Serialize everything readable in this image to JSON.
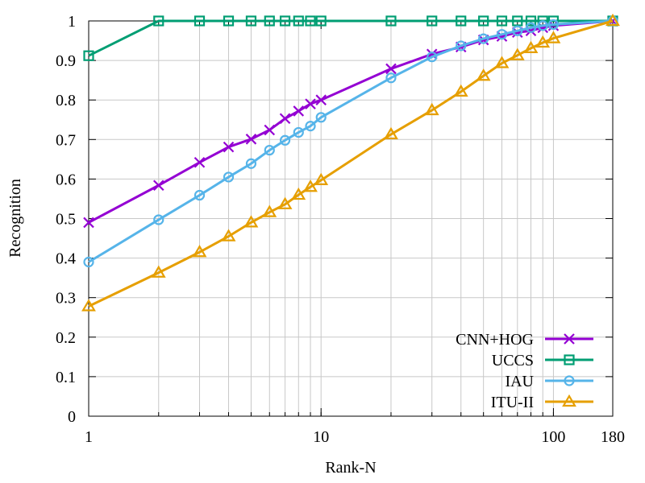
{
  "chart_data": {
    "type": "line",
    "title": "",
    "xlabel": "Rank-N",
    "ylabel": "Recognition",
    "x_scale": "log",
    "xlim": [
      1,
      180
    ],
    "ylim": [
      0,
      1
    ],
    "grid": true,
    "legend_position": "bottom-right",
    "x_ticks": [
      {
        "value": 1,
        "label": "1"
      },
      {
        "value": 10,
        "label": "10"
      },
      {
        "value": 100,
        "label": "100"
      },
      {
        "value": 180,
        "label": "180"
      }
    ],
    "y_ticks": [
      {
        "value": 0,
        "label": "0"
      },
      {
        "value": 0.1,
        "label": "0.1"
      },
      {
        "value": 0.2,
        "label": "0.2"
      },
      {
        "value": 0.3,
        "label": "0.3"
      },
      {
        "value": 0.4,
        "label": "0.4"
      },
      {
        "value": 0.5,
        "label": "0.5"
      },
      {
        "value": 0.6,
        "label": "0.6"
      },
      {
        "value": 0.7,
        "label": "0.7"
      },
      {
        "value": 0.8,
        "label": "0.8"
      },
      {
        "value": 0.9,
        "label": "0.9"
      },
      {
        "value": 1,
        "label": "1"
      }
    ],
    "series": [
      {
        "name": "CNN+HOG",
        "color": "#9400d3",
        "marker": "x",
        "x": [
          1,
          2,
          3,
          4,
          5,
          6,
          7,
          8,
          9,
          10,
          20,
          30,
          40,
          50,
          60,
          70,
          80,
          90,
          100,
          180
        ],
        "values": [
          0.49,
          0.584,
          0.642,
          0.681,
          0.701,
          0.724,
          0.753,
          0.772,
          0.79,
          0.8,
          0.879,
          0.916,
          0.934,
          0.952,
          0.961,
          0.971,
          0.975,
          0.983,
          0.988,
          1.0
        ]
      },
      {
        "name": "UCCS",
        "color": "#009e73",
        "marker": "square",
        "x": [
          1,
          2,
          3,
          4,
          5,
          6,
          7,
          8,
          9,
          10,
          20,
          30,
          40,
          50,
          60,
          70,
          80,
          90,
          100,
          180
        ],
        "values": [
          0.912,
          1.0,
          1.0,
          1.0,
          1.0,
          1.0,
          1.0,
          1.0,
          1.0,
          1.0,
          1.0,
          1.0,
          1.0,
          1.0,
          1.0,
          1.0,
          1.0,
          1.0,
          1.0,
          1.0
        ]
      },
      {
        "name": "IAU",
        "color": "#56b4e9",
        "marker": "circle",
        "x": [
          1,
          2,
          3,
          4,
          5,
          6,
          7,
          8,
          9,
          10,
          20,
          30,
          40,
          50,
          60,
          70,
          80,
          90,
          100,
          180
        ],
        "values": [
          0.39,
          0.497,
          0.559,
          0.605,
          0.639,
          0.673,
          0.698,
          0.718,
          0.734,
          0.756,
          0.856,
          0.909,
          0.937,
          0.955,
          0.966,
          0.975,
          0.983,
          0.988,
          0.991,
          1.0
        ]
      },
      {
        "name": "ITU-II",
        "color": "#e69f00",
        "marker": "triangle",
        "x": [
          1,
          2,
          3,
          4,
          5,
          6,
          7,
          8,
          9,
          10,
          20,
          30,
          40,
          50,
          60,
          70,
          80,
          90,
          100,
          180
        ],
        "values": [
          0.278,
          0.363,
          0.415,
          0.455,
          0.49,
          0.516,
          0.536,
          0.56,
          0.58,
          0.597,
          0.713,
          0.774,
          0.821,
          0.861,
          0.893,
          0.913,
          0.931,
          0.945,
          0.956,
          1.0
        ]
      }
    ]
  }
}
